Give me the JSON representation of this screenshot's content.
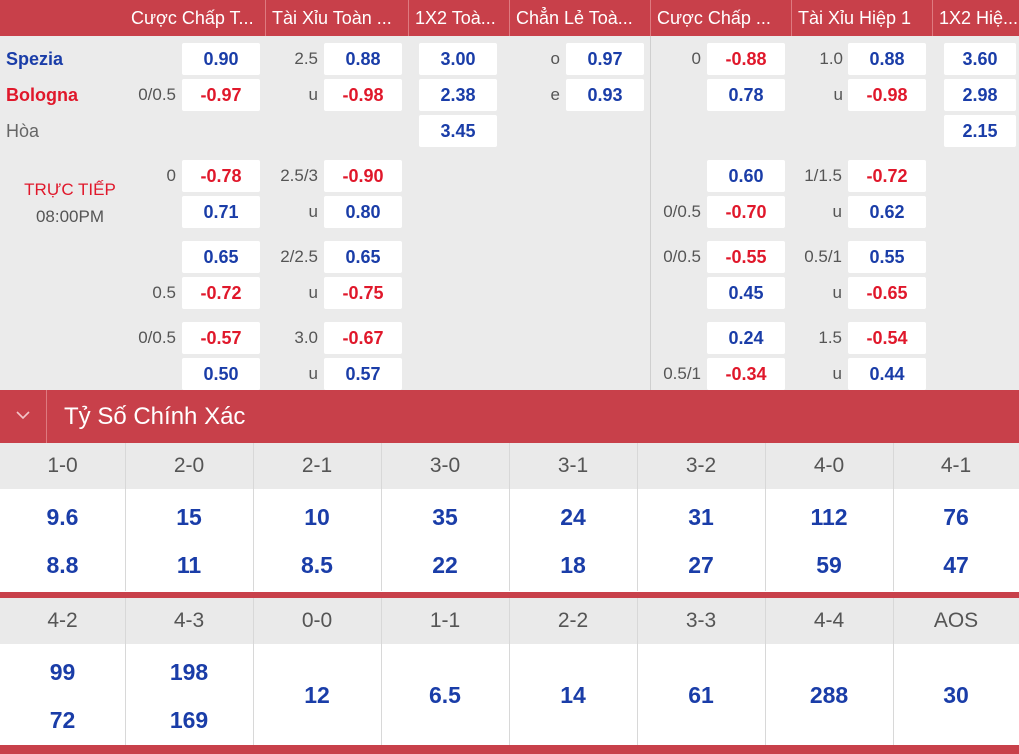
{
  "header": {
    "cols": [
      "Cược Chấp T...",
      "Tài Xỉu Toàn ...",
      "1X2 Toà...",
      "Chẳn Lẻ Toà...",
      "Cược Chấp ...",
      "Tài Xỉu Hiệp 1",
      "1X2 Hiệ..."
    ]
  },
  "teams": {
    "home": "Spezia",
    "away": "Bologna",
    "draw": "Hòa"
  },
  "status": {
    "live": "TRỰC TIẾP",
    "time": "08:00PM"
  },
  "main": {
    "hdp_label": "0/0.5",
    "hdp_home": "0.90",
    "hdp_away": "-0.97",
    "ou_line": "2.5",
    "ou_over": "0.88",
    "ou_u": "u",
    "ou_under": "-0.98",
    "x12_home": "3.00",
    "x12_away": "2.38",
    "x12_draw": "3.45",
    "oe_o": "o",
    "oe_odd": "0.97",
    "oe_e": "e",
    "oe_even": "0.93",
    "h1_hdp_label": "0",
    "h1_hdp_home": "-0.88",
    "h1_hdp_away": "0.78",
    "h1_ou_line": "1.0",
    "h1_ou_over": "0.88",
    "h1_ou_u": "u",
    "h1_ou_under": "-0.98",
    "h1_x12_home": "3.60",
    "h1_x12_away": "2.98",
    "h1_x12_draw": "2.15"
  },
  "alt": [
    {
      "hdp_l1": "0",
      "hdp1": "-0.78",
      "hdp_l2": "",
      "hdp2": "0.71",
      "ou_line": "2.5/3",
      "ou1": "-0.90",
      "ou_u": "u",
      "ou2": "0.80",
      "h1_l1": "",
      "h1_1": "0.60",
      "h1_l2": "0/0.5",
      "h1_2": "-0.70",
      "h1ou_line": "1/1.5",
      "h1ou1": "-0.72",
      "h1ou_u": "u",
      "h1ou2": "0.62"
    },
    {
      "hdp_l1": "",
      "hdp1": "0.65",
      "hdp_l2": "0.5",
      "hdp2": "-0.72",
      "ou_line": "2/2.5",
      "ou1": "0.65",
      "ou_u": "u",
      "ou2": "-0.75",
      "h1_l1": "0/0.5",
      "h1_1": "-0.55",
      "h1_l2": "",
      "h1_2": "0.45",
      "h1ou_line": "0.5/1",
      "h1ou1": "0.55",
      "h1ou_u": "u",
      "h1ou2": "-0.65"
    },
    {
      "hdp_l1": "0/0.5",
      "hdp1": "-0.57",
      "hdp_l2": "",
      "hdp2": "0.50",
      "ou_line": "3.0",
      "ou1": "-0.67",
      "ou_u": "u",
      "ou2": "0.57",
      "h1_l1": "",
      "h1_1": "0.24",
      "h1_l2": "0.5/1",
      "h1_2": "-0.34",
      "h1ou_line": "1.5",
      "h1ou1": "-0.54",
      "h1ou_u": "u",
      "h1ou2": "0.44"
    }
  ],
  "correct_score": {
    "title": "Tỷ Số Chính Xác",
    "row1": [
      {
        "score": "1-0",
        "a": "9.6",
        "b": "8.8"
      },
      {
        "score": "2-0",
        "a": "15",
        "b": "11"
      },
      {
        "score": "2-1",
        "a": "10",
        "b": "8.5"
      },
      {
        "score": "3-0",
        "a": "35",
        "b": "22"
      },
      {
        "score": "3-1",
        "a": "24",
        "b": "18"
      },
      {
        "score": "3-2",
        "a": "31",
        "b": "27"
      },
      {
        "score": "4-0",
        "a": "112",
        "b": "59"
      },
      {
        "score": "4-1",
        "a": "76",
        "b": "47"
      }
    ],
    "row2": [
      {
        "score": "4-2",
        "a": "99",
        "b": "72"
      },
      {
        "score": "4-3",
        "a": "198",
        "b": "169"
      },
      {
        "score": "0-0",
        "v": "12"
      },
      {
        "score": "1-1",
        "v": "6.5"
      },
      {
        "score": "2-2",
        "v": "14"
      },
      {
        "score": "3-3",
        "v": "61"
      },
      {
        "score": "4-4",
        "v": "288"
      },
      {
        "score": "AOS",
        "v": "30"
      }
    ]
  },
  "colors": {
    "header_red": "#c8404a",
    "positive": "#1a3da8",
    "negative": "#e0182b"
  }
}
